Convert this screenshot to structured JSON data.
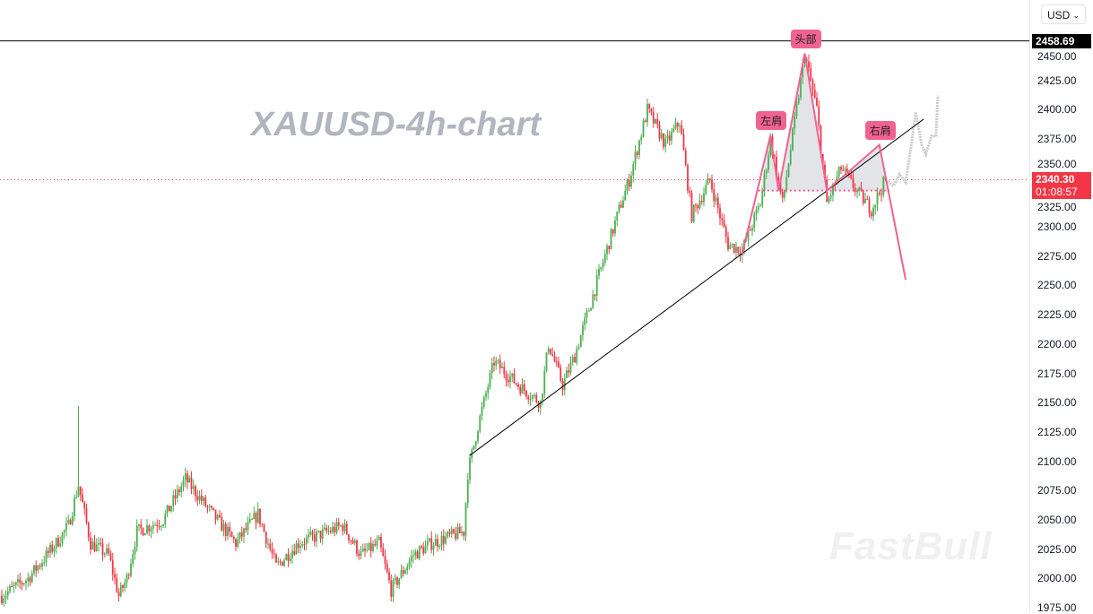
{
  "chart_data": {
    "type": "candlestick",
    "title": "XAUUSD-4h-chart",
    "currency": "USD",
    "ylim": [
      1970,
      2470
    ],
    "y_ticks": [
      1975,
      2000,
      2025,
      2050,
      2075,
      2100,
      2125,
      2150,
      2175,
      2200,
      2225,
      2250,
      2275,
      2300,
      2325,
      2350,
      2375,
      2400,
      2425,
      2450
    ],
    "grid": false,
    "high_line": {
      "price": 2458.69,
      "label": "2458.69"
    },
    "last_price": {
      "price": 2340.3,
      "label": "2340.30",
      "countdown": "01:08:57"
    },
    "close_waypoints": [
      [
        0,
        1985
      ],
      [
        13,
        2000
      ],
      [
        27,
        2030
      ],
      [
        33,
        2045
      ],
      [
        38,
        2080
      ],
      [
        44,
        2030
      ],
      [
        53,
        2020
      ],
      [
        58,
        1985
      ],
      [
        62,
        2000
      ],
      [
        67,
        2040
      ],
      [
        80,
        2050
      ],
      [
        91,
        2085
      ],
      [
        102,
        2060
      ],
      [
        116,
        2030
      ],
      [
        127,
        2055
      ],
      [
        136,
        2010
      ],
      [
        147,
        2030
      ],
      [
        169,
        2045
      ],
      [
        178,
        2020
      ],
      [
        187,
        2030
      ],
      [
        193,
        1990
      ],
      [
        204,
        2020
      ],
      [
        213,
        2030
      ],
      [
        229,
        2040
      ],
      [
        231,
        2090
      ],
      [
        236,
        2130
      ],
      [
        244,
        2185
      ],
      [
        256,
        2165
      ],
      [
        267,
        2150
      ],
      [
        271,
        2200
      ],
      [
        278,
        2165
      ],
      [
        284,
        2190
      ],
      [
        291,
        2230
      ],
      [
        298,
        2270
      ],
      [
        307,
        2320
      ],
      [
        311,
        2340
      ],
      [
        320,
        2400
      ],
      [
        329,
        2370
      ],
      [
        336,
        2390
      ],
      [
        342,
        2310
      ],
      [
        351,
        2340
      ],
      [
        360,
        2285
      ],
      [
        367,
        2280
      ],
      [
        376,
        2320
      ],
      [
        381,
        2375
      ],
      [
        387,
        2320
      ],
      [
        398,
        2448
      ],
      [
        404,
        2400
      ],
      [
        409,
        2320
      ],
      [
        416,
        2350
      ],
      [
        424,
        2330
      ],
      [
        431,
        2315
      ],
      [
        438,
        2340.3
      ]
    ],
    "spike": {
      "index": 38,
      "high": 2147
    },
    "trendline": [
      [
        232,
        2105
      ],
      [
        457,
        2392
      ]
    ],
    "pattern": {
      "points": [
        [
          367,
          2277
        ],
        [
          381,
          2378
        ],
        [
          385,
          2331
        ],
        [
          398,
          2448
        ],
        [
          409,
          2331
        ],
        [
          435,
          2370
        ],
        [
          448,
          2255
        ]
      ],
      "neckline": {
        "price": 2331,
        "from": 375,
        "to": 440
      },
      "labels": [
        {
          "text": "左肩",
          "index": 381,
          "price": 2378
        },
        {
          "text": "头部",
          "index": 398,
          "price": 2448
        },
        {
          "text": "右肩",
          "index": 435,
          "price": 2370
        }
      ]
    },
    "projection": [
      [
        438,
        2340
      ],
      [
        442,
        2335
      ],
      [
        445,
        2345
      ],
      [
        448,
        2338
      ],
      [
        451,
        2372
      ],
      [
        453,
        2398
      ],
      [
        456,
        2370
      ],
      [
        458,
        2362
      ],
      [
        461,
        2378
      ],
      [
        463,
        2377
      ],
      [
        464,
        2412
      ]
    ],
    "colors": {
      "up": "#4caf50",
      "down": "#f23645",
      "pattern": "#f06292",
      "fill": "#e3e4e8",
      "projection": "#c9cacd"
    }
  },
  "watermark": "FastBull"
}
